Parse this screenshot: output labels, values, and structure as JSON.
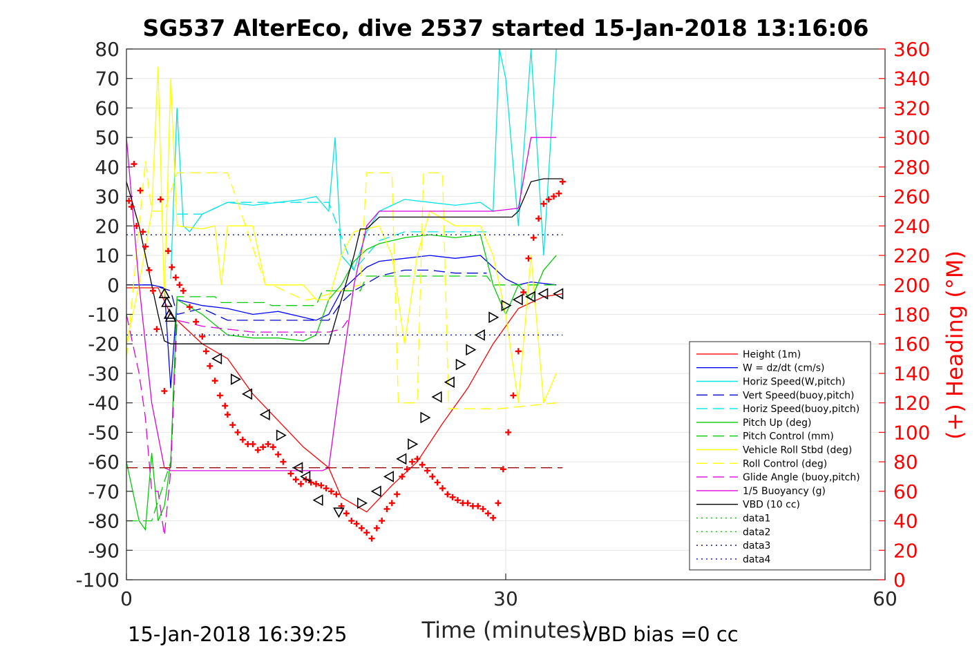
{
  "chart_data": {
    "type": "line",
    "title": "SG537 AlterEco, dive 2537 started 15-Jan-2018 13:16:06",
    "xlabel": "Time (minutes)",
    "ylabel_right": "(+) Heading (°M)",
    "footer_left": "15-Jan-2018 16:39:25",
    "footer_right": "VBD bias =0 cc",
    "xlim": [
      0,
      60
    ],
    "ylim": [
      -100,
      80
    ],
    "ylim_right": [
      0,
      360
    ],
    "x_ticks": [
      0,
      30,
      60
    ],
    "y_ticks": [
      -100,
      -90,
      -80,
      -70,
      -60,
      -50,
      -40,
      -30,
      -20,
      -10,
      0,
      10,
      20,
      30,
      40,
      50,
      60,
      70,
      80
    ],
    "y_ticks_right": [
      0,
      20,
      40,
      60,
      80,
      100,
      120,
      140,
      160,
      180,
      200,
      220,
      240,
      260,
      280,
      300,
      320,
      340,
      360
    ],
    "grid": true,
    "legend_position": "bottom-right",
    "legend": [
      {
        "label": "Height (1m)",
        "color": "#ff0000",
        "style": "solid"
      },
      {
        "label": "W = dz/dt (cm/s)",
        "color": "#0000ff",
        "style": "solid"
      },
      {
        "label": "Horiz Speed(W,pitch)",
        "color": "#00e5e5",
        "style": "solid"
      },
      {
        "label": "Vert Speed(buoy,pitch)",
        "color": "#0000cc",
        "style": "dashed"
      },
      {
        "label": "Horiz Speed(buoy,pitch)",
        "color": "#00e5e5",
        "style": "dashed"
      },
      {
        "label": "Pitch Up (deg)",
        "color": "#00cc00",
        "style": "solid"
      },
      {
        "label": "Pitch Control (mm)",
        "color": "#00cc00",
        "style": "dashed"
      },
      {
        "label": "Vehicle Roll Stbd (deg)",
        "color": "#ffff00",
        "style": "solid"
      },
      {
        "label": "Roll Control (deg)",
        "color": "#ffff00",
        "style": "dashed"
      },
      {
        "label": "Glide Angle (buoy,pitch)",
        "color": "#dd00dd",
        "style": "dashed"
      },
      {
        "label": "1/5 Buoyancy (g)",
        "color": "#dd00dd",
        "style": "solid"
      },
      {
        "label": "VBD (10 cc)",
        "color": "#000000",
        "style": "solid"
      },
      {
        "label": "data1",
        "color": "#00cc00",
        "style": "dotted"
      },
      {
        "label": "data2",
        "color": "#00cc00",
        "style": "dotted"
      },
      {
        "label": "data3",
        "color": "#000080",
        "style": "dotted"
      },
      {
        "label": "data4",
        "color": "#0000ff",
        "style": "dotted"
      }
    ],
    "series": [
      {
        "name": "Height (1m)",
        "color": "#ff0000",
        "style": "solid",
        "x": [
          0,
          2.5,
          3.5,
          6,
          8,
          10,
          12,
          14,
          16,
          17,
          19,
          21,
          23,
          25,
          27,
          29,
          31,
          33,
          34.5
        ],
        "y": [
          -1,
          -1,
          -10,
          -20,
          -25,
          -37,
          -46,
          -55,
          -62,
          -72,
          -77,
          -68,
          -60,
          -47,
          -35,
          -20,
          -8,
          -4,
          -3
        ]
      },
      {
        "name": "W = dz/dt (cm/s)",
        "color": "#0000ff",
        "style": "solid",
        "x": [
          0,
          2,
          3,
          3.5,
          4,
          6,
          8,
          10,
          12,
          14,
          15,
          16,
          17,
          18,
          19,
          20,
          22,
          24,
          26,
          28,
          29,
          30,
          31,
          32,
          34
        ],
        "y": [
          0,
          0,
          -1,
          -35,
          -5,
          -7,
          -8,
          -10,
          -9,
          -11,
          -12,
          -10,
          -2,
          2,
          6,
          8,
          9,
          10,
          9,
          10,
          6,
          2,
          0,
          1,
          0
        ]
      },
      {
        "name": "Horiz Speed(W,pitch)",
        "color": "#00e5e5",
        "style": "solid",
        "x": [
          3.5,
          4,
          4.5,
          5,
          6,
          8,
          10,
          12,
          14,
          15,
          16,
          16.5,
          17,
          18,
          19,
          20,
          22,
          24,
          26,
          28,
          29,
          29.5,
          30,
          31,
          32,
          33,
          34
        ],
        "y": [
          2,
          60,
          20,
          18,
          24,
          28,
          27,
          28,
          29,
          30,
          25,
          50,
          10,
          5,
          18,
          25,
          29,
          28,
          27,
          28,
          25,
          80,
          70,
          20,
          80,
          10,
          80
        ]
      },
      {
        "name": "Vert Speed(buoy,pitch)",
        "color": "#0000cc",
        "style": "dashed",
        "x": [
          0,
          2,
          3.5,
          4,
          6,
          8,
          10,
          12,
          14,
          15,
          16,
          17,
          18,
          20,
          22,
          24,
          26,
          28,
          28.5
        ],
        "y": [
          0,
          0,
          -2,
          -10,
          -8,
          -12,
          -12,
          -12,
          -12,
          -12,
          -12,
          -6,
          -2,
          3,
          5,
          5,
          4,
          4,
          4
        ]
      },
      {
        "name": "Horiz Speed(buoy,pitch)",
        "color": "#00e5e5",
        "style": "dashed",
        "x": [
          4,
          6,
          8,
          10,
          12,
          14,
          15,
          16,
          18,
          20,
          22,
          24,
          26,
          28,
          28.5
        ],
        "y": [
          24,
          24,
          28,
          28,
          28,
          28,
          28,
          28,
          5,
          15,
          18,
          18,
          18,
          18,
          18
        ]
      },
      {
        "name": "Pitch Up (deg)",
        "color": "#00cc00",
        "style": "solid",
        "x": [
          0,
          1,
          1.5,
          2,
          2.5,
          3,
          3.5,
          4,
          6,
          8,
          10,
          12,
          14,
          15,
          16,
          17,
          18,
          19,
          20,
          22,
          24,
          26,
          28,
          29,
          30,
          31,
          32,
          33,
          34
        ],
        "y": [
          -60,
          -80,
          -83,
          -57,
          -80,
          -75,
          -60,
          -5,
          -10,
          -17,
          -18,
          -18,
          -19,
          -17,
          -5,
          0,
          8,
          12,
          14,
          16,
          17,
          16,
          17,
          0,
          -10,
          0,
          -5,
          5,
          10
        ]
      },
      {
        "name": "Pitch Control (mm)",
        "color": "#00cc00",
        "style": "dashed",
        "x": [
          0,
          2,
          3.5,
          4,
          7,
          7.5,
          11,
          11.5,
          15,
          15.5,
          18.5,
          19,
          28.5,
          29,
          34
        ],
        "y": [
          -80,
          -80,
          -60,
          -4,
          -4,
          -6,
          -6,
          -7,
          -7,
          -2,
          -2,
          3,
          3,
          0,
          0
        ]
      },
      {
        "name": "Vehicle Roll Stbd (deg)",
        "color": "#ffff00",
        "style": "solid",
        "x": [
          0,
          1,
          2,
          2.5,
          3,
          3.5,
          4,
          6,
          7,
          7.5,
          8,
          10,
          11,
          12,
          14,
          15,
          16,
          17,
          18,
          20,
          21,
          22,
          23,
          24,
          26,
          28,
          29,
          30,
          31,
          32,
          33,
          34
        ],
        "y": [
          -20,
          0,
          25,
          74,
          -5,
          70,
          20,
          19,
          20,
          0,
          20,
          20,
          0,
          0,
          0,
          -5,
          -5,
          10,
          18,
          20,
          10,
          -20,
          10,
          25,
          20,
          20,
          10,
          -10,
          -40,
          10,
          -40,
          -30
        ]
      },
      {
        "name": "Roll Control (deg)",
        "color": "#ffff00",
        "style": "dashed",
        "x": [
          0,
          1.5,
          2,
          3,
          4,
          5,
          7.5,
          8,
          11,
          11.5,
          14,
          14.5,
          18.5,
          19,
          21,
          21.5,
          23,
          23.5,
          25,
          25.5,
          29,
          29.5,
          34
        ],
        "y": [
          -25,
          42,
          25,
          25,
          38,
          38,
          38,
          38,
          0,
          0,
          -5,
          -5,
          0,
          38,
          38,
          -40,
          -40,
          38,
          38,
          -42,
          -42,
          -42,
          -40
        ]
      },
      {
        "name": "Glide Angle (buoy,pitch)",
        "color": "#dd00dd",
        "style": "dashed",
        "x": [
          0,
          1,
          1.5,
          2,
          2.5,
          3,
          3.5,
          4,
          6,
          8,
          10,
          12,
          14,
          15,
          16,
          17,
          17.5
        ],
        "y": [
          -10,
          -30,
          -45,
          -70,
          -70,
          -85,
          -63,
          -12,
          -14,
          -15,
          -16,
          -16,
          -16,
          -16,
          -16,
          -15,
          -12
        ]
      },
      {
        "name": "1/5 Buoyancy (g)",
        "color": "#dd00dd",
        "style": "solid",
        "x": [
          0,
          1,
          2,
          3,
          3.5,
          4,
          8,
          12,
          15.5,
          16,
          17,
          18,
          19,
          20,
          28,
          29,
          31,
          32,
          34
        ],
        "y": [
          50,
          0,
          -40,
          -62,
          -63,
          -63,
          -63,
          -63,
          -63,
          -62,
          -30,
          0,
          20,
          25,
          25,
          25,
          26,
          50,
          50
        ]
      },
      {
        "name": "VBD (10 cc)",
        "color": "#000000",
        "style": "solid",
        "x": [
          0,
          1,
          2,
          2.5,
          3,
          3.5,
          4,
          8,
          12,
          15,
          16,
          17,
          18,
          18.5,
          19,
          20,
          30.5,
          31,
          32,
          33,
          34.5
        ],
        "y": [
          35,
          20,
          0,
          -10,
          -19,
          -20,
          -20,
          -20,
          -20,
          -20,
          -20,
          -5,
          10,
          19,
          19,
          23,
          23,
          25,
          35,
          36,
          36
        ]
      },
      {
        "name": "data1",
        "color": "#00cc00",
        "style": "dotted",
        "x": [
          0,
          34.5
        ],
        "y": [
          17,
          17
        ]
      },
      {
        "name": "data2",
        "color": "#00cc00",
        "style": "dotted",
        "x": [
          0,
          34.5
        ],
        "y": [
          -17,
          -17
        ]
      },
      {
        "name": "data3",
        "color": "#000080",
        "style": "dotted",
        "x": [
          0,
          34.5
        ],
        "y": [
          17,
          17
        ]
      },
      {
        "name": "data4",
        "color": "#0000ff",
        "style": "dotted",
        "x": [
          0,
          34.5
        ],
        "y": [
          -17,
          -17
        ]
      },
      {
        "name": "Apogee level",
        "color": "#990000",
        "style": "dashed",
        "x": [
          0,
          34.5
        ],
        "y": [
          -62,
          -62
        ]
      }
    ],
    "heading": {
      "axis": "right",
      "color": "#ff0000",
      "marker": "+",
      "points": [
        [
          0.2,
          257
        ],
        [
          0.4,
          253
        ],
        [
          0.6,
          282
        ],
        [
          0.8,
          240
        ],
        [
          1.1,
          264
        ],
        [
          1.3,
          236
        ],
        [
          1.5,
          226
        ],
        [
          1.8,
          210
        ],
        [
          2.1,
          196
        ],
        [
          2.4,
          170
        ],
        [
          2.7,
          258
        ],
        [
          3,
          128
        ],
        [
          3.3,
          223
        ],
        [
          3.6,
          212
        ],
        [
          3.9,
          205
        ],
        [
          4.2,
          200
        ],
        [
          4.5,
          196
        ],
        [
          5,
          185
        ],
        [
          5.5,
          175
        ],
        [
          6,
          165
        ],
        [
          6.3,
          155
        ],
        [
          6.6,
          145
        ],
        [
          7,
          135
        ],
        [
          7.4,
          125
        ],
        [
          7.8,
          118
        ],
        [
          8,
          112
        ],
        [
          8.4,
          105
        ],
        [
          8.8,
          100
        ],
        [
          9.2,
          95
        ],
        [
          9.6,
          92
        ],
        [
          10,
          92
        ],
        [
          10.4,
          88
        ],
        [
          10.8,
          90
        ],
        [
          11.2,
          92
        ],
        [
          11.6,
          90
        ],
        [
          12,
          85
        ],
        [
          12.4,
          80
        ],
        [
          13,
          72
        ],
        [
          13.4,
          68
        ],
        [
          13.8,
          65
        ],
        [
          14.2,
          68
        ],
        [
          14.6,
          66
        ],
        [
          15,
          65
        ],
        [
          15.4,
          64
        ],
        [
          15.8,
          62
        ],
        [
          16.2,
          60
        ],
        [
          16.6,
          58
        ],
        [
          17,
          50
        ],
        [
          17.4,
          45
        ],
        [
          17.8,
          40
        ],
        [
          18.2,
          38
        ],
        [
          18.6,
          35
        ],
        [
          19,
          32
        ],
        [
          19.4,
          28
        ],
        [
          19.8,
          35
        ],
        [
          20.2,
          40
        ],
        [
          20.6,
          48
        ],
        [
          21,
          52
        ],
        [
          21.4,
          58
        ],
        [
          21.8,
          70
        ],
        [
          22.2,
          75
        ],
        [
          22.6,
          80
        ],
        [
          23,
          82
        ],
        [
          23.4,
          78
        ],
        [
          23.8,
          74
        ],
        [
          24.2,
          70
        ],
        [
          24.6,
          66
        ],
        [
          25,
          62
        ],
        [
          25.4,
          58
        ],
        [
          25.8,
          56
        ],
        [
          26.2,
          54
        ],
        [
          26.6,
          52
        ],
        [
          27,
          52
        ],
        [
          27.4,
          50
        ],
        [
          27.8,
          50
        ],
        [
          28.2,
          48
        ],
        [
          28.6,
          45
        ],
        [
          29,
          42
        ],
        [
          29.4,
          52
        ],
        [
          29.8,
          75
        ],
        [
          30.2,
          100
        ],
        [
          30.6,
          125
        ],
        [
          31,
          155
        ],
        [
          31.4,
          195
        ],
        [
          31.8,
          218
        ],
        [
          32.2,
          232
        ],
        [
          32.6,
          245
        ],
        [
          33,
          255
        ],
        [
          33.4,
          258
        ],
        [
          33.8,
          260
        ],
        [
          34.2,
          262
        ],
        [
          34.5,
          270
        ]
      ]
    },
    "markers": {
      "color": "#000000",
      "points": [
        [
          3,
          -3,
          "up"
        ],
        [
          3.2,
          -6,
          "up"
        ],
        [
          3.4,
          -10,
          "up"
        ],
        [
          3.5,
          -11,
          "up"
        ],
        [
          7.2,
          -25,
          "left"
        ],
        [
          8.6,
          -32,
          "right"
        ],
        [
          9.6,
          -37,
          "left"
        ],
        [
          11,
          -44,
          "left"
        ],
        [
          12.2,
          -51,
          "right"
        ],
        [
          13.6,
          -62,
          "left"
        ],
        [
          14.2,
          -65,
          "left"
        ],
        [
          15.2,
          -73,
          "left"
        ],
        [
          16.8,
          -77,
          "down"
        ],
        [
          18.6,
          -74,
          "right"
        ],
        [
          19.8,
          -70,
          "left"
        ],
        [
          20.8,
          -65,
          "left"
        ],
        [
          21.8,
          -59,
          "left"
        ],
        [
          22.6,
          -54,
          "right"
        ],
        [
          23.6,
          -45,
          "right"
        ],
        [
          24.6,
          -38,
          "left"
        ],
        [
          25.6,
          -33,
          "left"
        ],
        [
          26.4,
          -27,
          "right"
        ],
        [
          27.2,
          -22,
          "right"
        ],
        [
          28,
          -17,
          "left"
        ],
        [
          29,
          -11,
          "right"
        ],
        [
          30,
          -7,
          "right"
        ],
        [
          31,
          -5,
          "left"
        ],
        [
          32,
          -4,
          "left"
        ],
        [
          33,
          -3,
          "left"
        ],
        [
          34.2,
          -3,
          "left"
        ]
      ]
    }
  }
}
